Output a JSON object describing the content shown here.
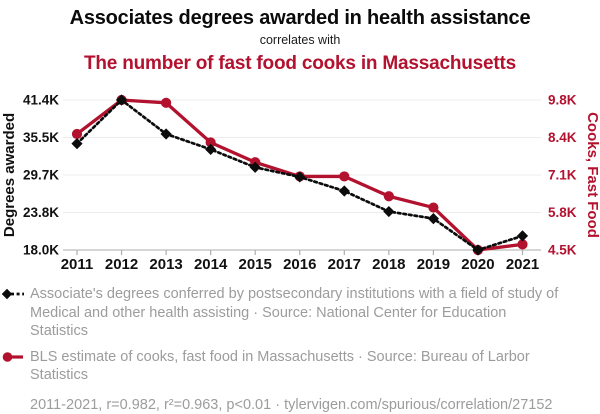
{
  "header": {
    "title_top": "Associates degrees awarded in health assistance",
    "connector": "correlates with",
    "title_bottom": "The number of fast food cooks in Massachusetts"
  },
  "colors": {
    "accent_red": "#b3122f",
    "series_black": "#0c0c0c",
    "grid_line": "#ececec",
    "axis_line": "#adadad",
    "tick_label_black": "#111111",
    "legend_text_gray": "#9c9c9c"
  },
  "chart_data": {
    "type": "line",
    "x": [
      2011,
      2012,
      2013,
      2014,
      2015,
      2016,
      2017,
      2018,
      2019,
      2020,
      2021
    ],
    "series": [
      {
        "name": "Associate's degrees in Medical and other health assisting",
        "axis": "left",
        "style": "dotted",
        "marker": "diamond",
        "color_key": "series_black",
        "values": [
          34.6,
          41.4,
          36.1,
          33.7,
          30.9,
          29.4,
          27.2,
          24.0,
          22.9,
          18.0,
          20.2
        ],
        "unit": "K"
      },
      {
        "name": "Cooks, fast food in Massachusetts",
        "axis": "right",
        "style": "solid",
        "marker": "circle",
        "color_key": "accent_red",
        "values": [
          8.6,
          9.8,
          9.7,
          8.3,
          7.6,
          7.1,
          7.1,
          6.4,
          6.0,
          4.5,
          4.7
        ],
        "unit": "K"
      }
    ],
    "left_axis": {
      "label": "Degrees awarded",
      "ticks_top_to_bottom": [
        "41.4K",
        "35.5K",
        "29.7K",
        "23.8K",
        "18.0K"
      ],
      "min": 18.0,
      "max": 41.4
    },
    "right_axis": {
      "label": "Cooks, Fast Food",
      "ticks_top_to_bottom": [
        "9.8K",
        "8.4K",
        "7.1K",
        "5.8K",
        "4.5K"
      ],
      "min": 4.5,
      "max": 9.8
    },
    "grid": true,
    "legend_position": "below"
  },
  "legend": [
    {
      "marker": "black-diamond-dotted",
      "text": "Associate's degrees conferred by postsecondary institutions with a field of study of Medical and other health assisting · Source: National Center for Education Statistics"
    },
    {
      "marker": "red-circle-line",
      "text": "BLS estimate of cooks, fast food in Massachusetts · Source: Bureau of Larbor Statistics"
    }
  ],
  "footer": {
    "text": "2011-2021, r=0.982, r²=0.963, p<0.01 · tylervigen.com/spurious/correlation/27152"
  }
}
